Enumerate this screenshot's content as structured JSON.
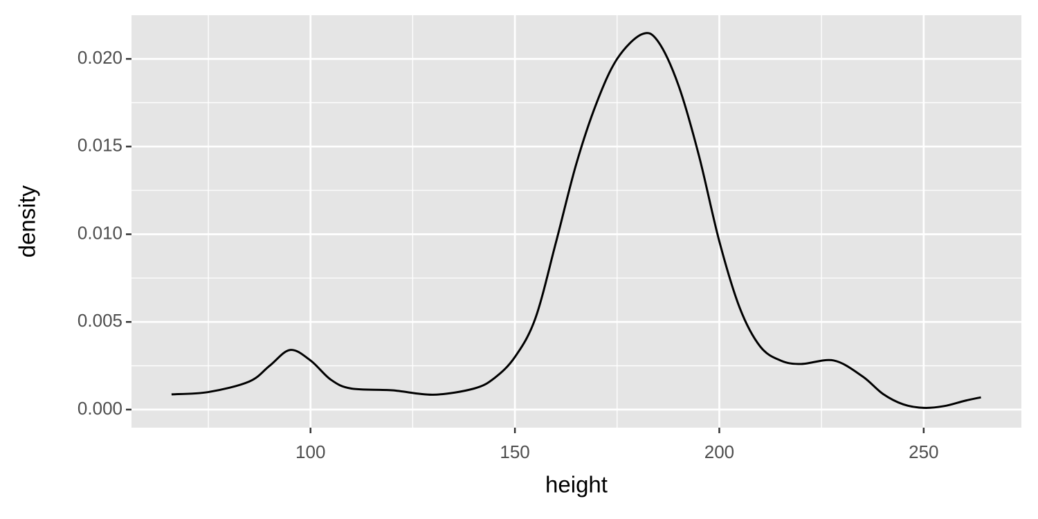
{
  "chart_data": {
    "type": "line",
    "x_label": "height",
    "y_label": "density",
    "x": [
      66,
      75,
      85,
      90,
      95,
      100,
      105,
      110,
      120,
      130,
      140,
      145,
      150,
      155,
      160,
      165,
      170,
      175,
      181,
      185,
      190,
      195,
      200,
      205,
      210,
      215,
      220,
      228,
      235,
      240,
      245,
      250,
      255,
      260,
      264
    ],
    "series": [
      {
        "color": "#000000",
        "values": [
          0.00087,
          0.001,
          0.0016,
          0.0025,
          0.0034,
          0.0028,
          0.0017,
          0.0012,
          0.0011,
          0.00085,
          0.0012,
          0.0018,
          0.003,
          0.0052,
          0.0095,
          0.014,
          0.0175,
          0.02,
          0.0214,
          0.021,
          0.0185,
          0.0145,
          0.0096,
          0.0058,
          0.0036,
          0.0028,
          0.0026,
          0.0028,
          0.0019,
          0.0009,
          0.0003,
          0.0001,
          0.0002,
          0.0005,
          0.0007
        ]
      }
    ],
    "xlim": [
      56.2,
      273.9
    ],
    "ylim": [
      -0.00103,
      0.02249
    ],
    "xticks": [
      100,
      150,
      200,
      250
    ],
    "x_minor_ticks": [
      75,
      125,
      175,
      225
    ],
    "yticks": [
      {
        "value": 0,
        "label": "0.000"
      },
      {
        "value": 0.005,
        "label": "0.005"
      },
      {
        "value": 0.01,
        "label": "0.010"
      },
      {
        "value": 0.015,
        "label": "0.015"
      },
      {
        "value": 0.02,
        "label": "0.020"
      }
    ],
    "y_minor_ticks": [
      0.0025,
      0.0075,
      0.0125,
      0.0175
    ],
    "grid": true,
    "panel_color": "#e5e5e5"
  }
}
